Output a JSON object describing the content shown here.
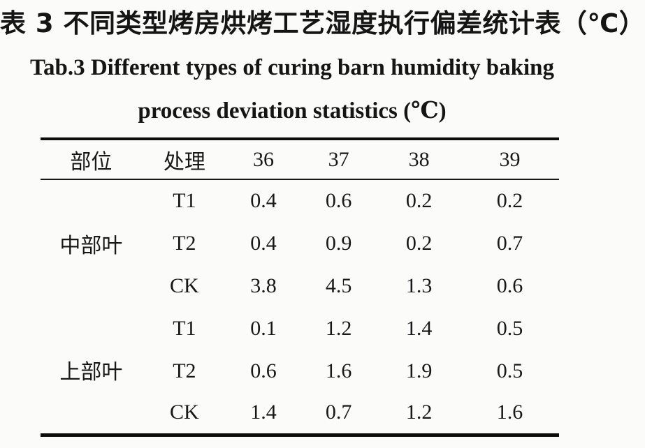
{
  "titles": {
    "chinese": "表 3 不同类型烤房烘烤工艺湿度执行偏差统计表（℃）",
    "english_line1": "Tab.3 Different types of curing barn humidity baking",
    "english_line2": "process deviation statistics (℃)"
  },
  "table": {
    "headers": [
      "部位",
      "处理",
      "36",
      "37",
      "38",
      "39"
    ],
    "groups": [
      {
        "part": "中部叶",
        "rows": [
          {
            "treatment": "T1",
            "values": [
              "0.4",
              "0.6",
              "0.2",
              "0.2"
            ]
          },
          {
            "treatment": "T2",
            "values": [
              "0.4",
              "0.9",
              "0.2",
              "0.7"
            ]
          },
          {
            "treatment": "CK",
            "values": [
              "3.8",
              "4.5",
              "1.3",
              "0.6"
            ]
          }
        ]
      },
      {
        "part": "上部叶",
        "rows": [
          {
            "treatment": "T1",
            "values": [
              "0.1",
              "1.2",
              "1.4",
              "0.5"
            ]
          },
          {
            "treatment": "T2",
            "values": [
              "0.6",
              "1.6",
              "1.9",
              "0.5"
            ]
          },
          {
            "treatment": "CK",
            "values": [
              "1.4",
              "0.7",
              "1.2",
              "1.6"
            ]
          }
        ]
      }
    ]
  },
  "chart_data": {
    "type": "table",
    "title": "表 3 不同类型烤房烘烤工艺湿度执行偏差统计表（℃） / Tab.3 Different types of curing barn humidity baking process deviation statistics (℃)",
    "columns": [
      "部位",
      "处理",
      "36",
      "37",
      "38",
      "39"
    ],
    "rows": [
      [
        "中部叶",
        "T1",
        0.4,
        0.6,
        0.2,
        0.2
      ],
      [
        "中部叶",
        "T2",
        0.4,
        0.9,
        0.2,
        0.7
      ],
      [
        "中部叶",
        "CK",
        3.8,
        4.5,
        1.3,
        0.6
      ],
      [
        "上部叶",
        "T1",
        0.1,
        1.2,
        1.4,
        0.5
      ],
      [
        "上部叶",
        "T2",
        0.6,
        1.6,
        1.9,
        0.5
      ],
      [
        "上部叶",
        "CK",
        1.4,
        0.7,
        1.2,
        1.6
      ]
    ]
  }
}
